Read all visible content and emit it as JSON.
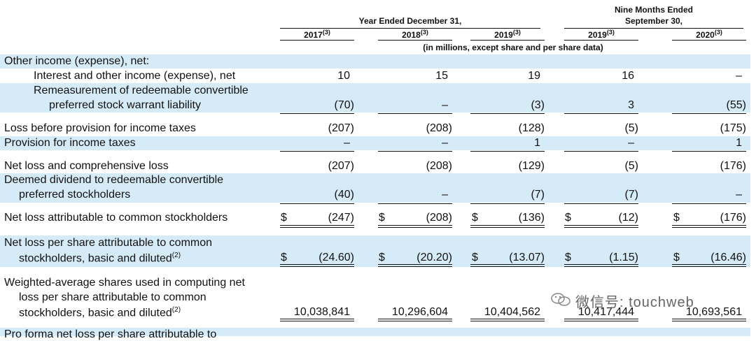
{
  "header": {
    "group1": "Year Ended December 31,",
    "group2_line1": "Nine Months Ended",
    "group2_line2": "September 30,",
    "years": [
      "2017",
      "2018",
      "2019",
      "2019",
      "2020"
    ],
    "footnote_ref": "(3)",
    "units": "(in millions, except share and per share data)"
  },
  "rows": {
    "other_income": {
      "label": "Other income (expense), net:"
    },
    "interest": {
      "label": "Interest and other income (expense), net",
      "values": [
        "10",
        "15",
        "19",
        "16",
        "–"
      ]
    },
    "remeasure": {
      "label1": "Remeasurement of redeemable convertible",
      "label2": "preferred stock warrant liability",
      "values": [
        "(70)",
        "–",
        "(3)",
        "3",
        "(55)"
      ]
    },
    "loss_before": {
      "label": "Loss before provision for income taxes",
      "values": [
        "(207)",
        "(208)",
        "(128)",
        "(5)",
        "(175)"
      ]
    },
    "provision": {
      "label": "Provision for income taxes",
      "values": [
        "–",
        "–",
        "1",
        "–",
        "1"
      ]
    },
    "net_loss": {
      "label": "Net loss and comprehensive loss",
      "values": [
        "(207)",
        "(208)",
        "(129)",
        "(5)",
        "(176)"
      ]
    },
    "deemed": {
      "label1": "Deemed dividend to redeemable convertible",
      "label2": "preferred stockholders",
      "values": [
        "(40)",
        "–",
        "(7)",
        "(7)",
        "–"
      ]
    },
    "attrib": {
      "label": "Net loss attributable to common stockholders",
      "currency": "$",
      "values": [
        "(247)",
        "(208)",
        "(136)",
        "(12)",
        "(176)"
      ]
    },
    "per_share": {
      "label1": "Net loss per share attributable to common",
      "label2": "stockholders, basic and diluted",
      "footnote": "(2)",
      "currency": "$",
      "values": [
        "(24.60)",
        "(20.20)",
        "(13.07)",
        "(1.15)",
        "(16.46)"
      ]
    },
    "weighted": {
      "label1": "Weighted-average shares used in computing net",
      "label2": "loss per share attributable to common",
      "label3": "stockholders, basic and diluted",
      "footnote": "(2)",
      "values": [
        "10,038,841",
        "10,296,604",
        "10,404,562",
        "10,417,444",
        "10,693,561"
      ]
    },
    "cutoff": {
      "label": "Pro forma net loss per share attributable to"
    }
  },
  "watermark": {
    "text": "微信号: touchweb",
    "icon": "wechat-icon"
  }
}
